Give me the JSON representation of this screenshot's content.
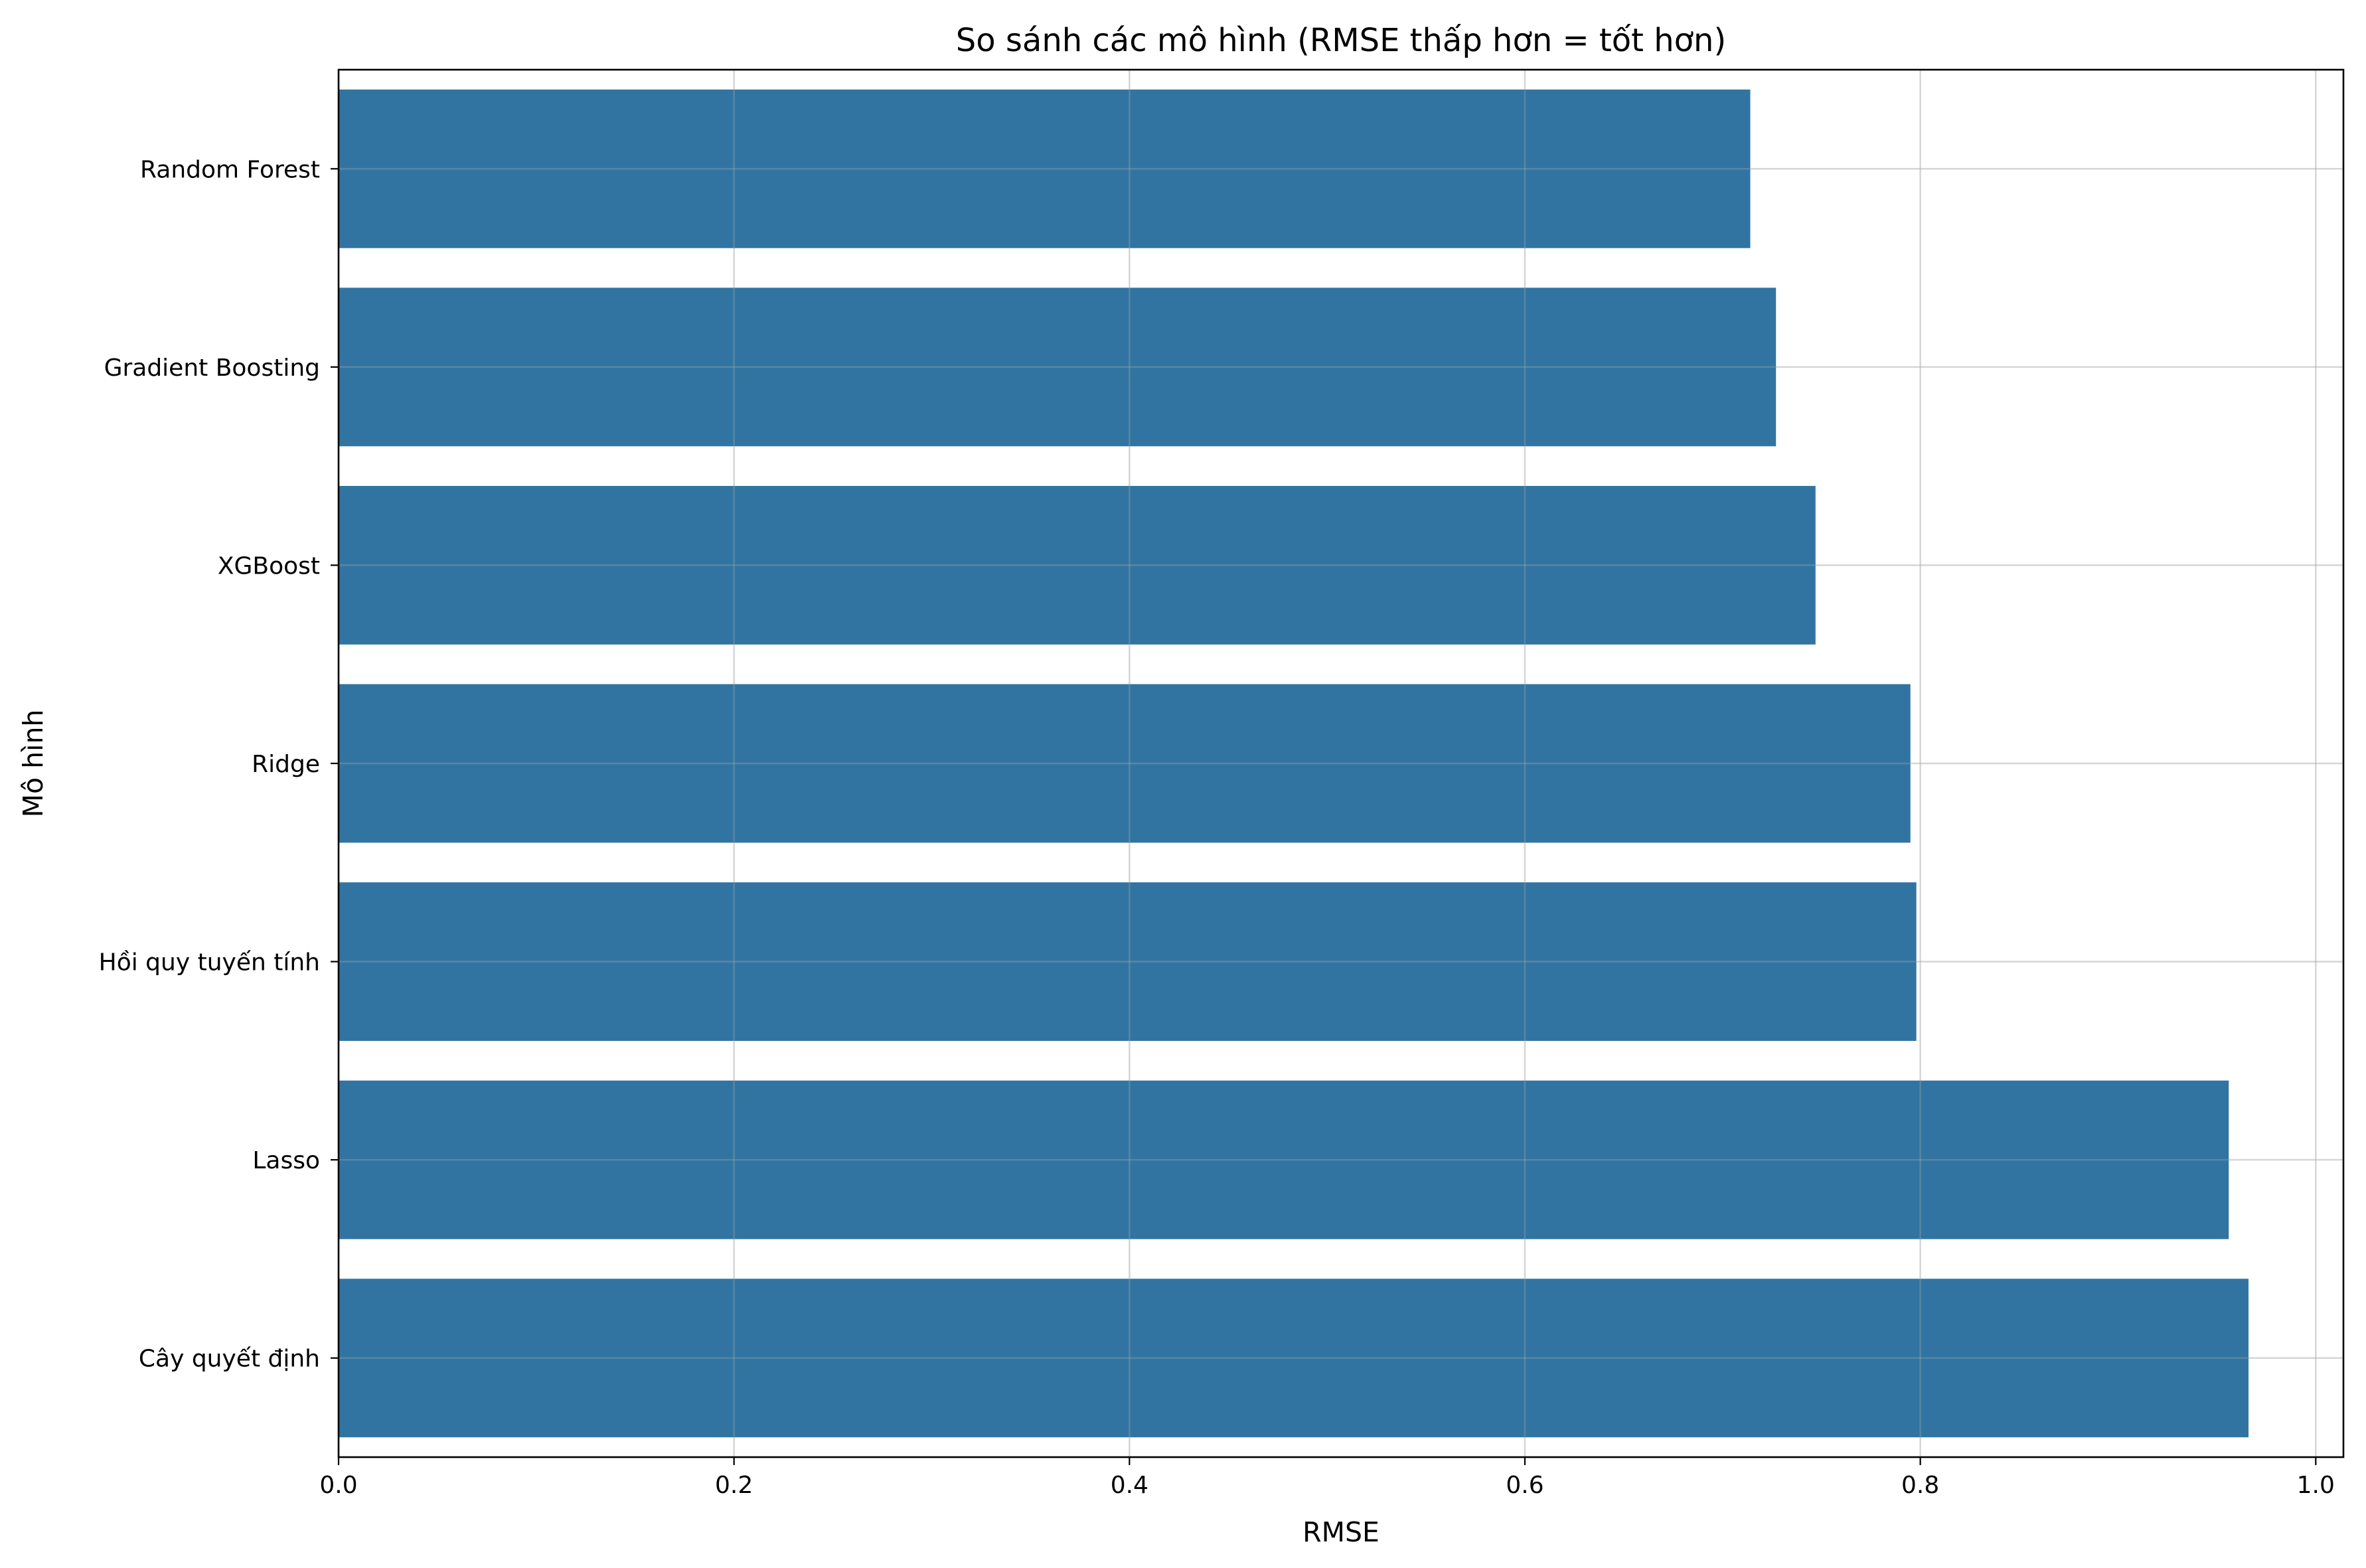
{
  "colors": {
    "bar": "#3274a1",
    "background": "#ffffff"
  },
  "chart_data": {
    "type": "bar",
    "orientation": "horizontal",
    "title": "So sánh các mô hình (RMSE thấp hơn = tốt hơn)",
    "xlabel": "RMSE",
    "ylabel": "Mô hình",
    "categories": [
      "Random Forest",
      "Gradient Boosting",
      "XGBoost",
      "Ridge",
      "Hồi quy tuyến tính",
      "Lasso",
      "Cây quyết định"
    ],
    "values": [
      0.714,
      0.727,
      0.747,
      0.795,
      0.798,
      0.956,
      0.966
    ],
    "xlim": [
      0.0,
      1.014
    ],
    "xticks": [
      "0.0",
      "0.2",
      "0.4",
      "0.6",
      "0.8",
      "1.0"
    ],
    "grid": true
  }
}
